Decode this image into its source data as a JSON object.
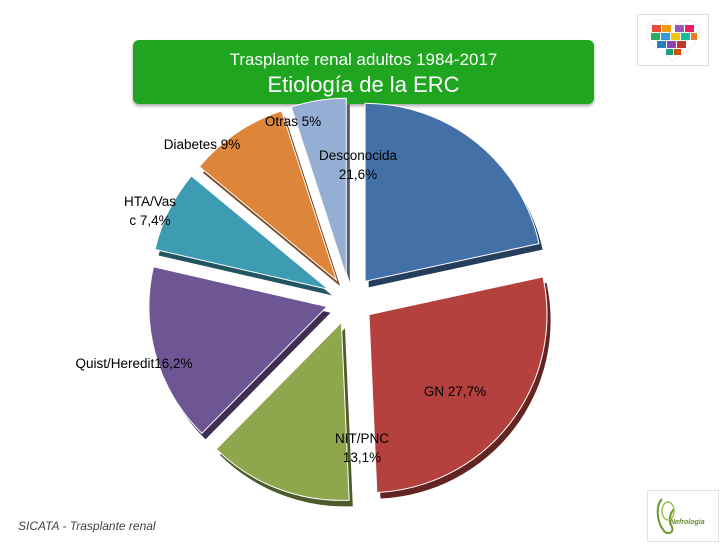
{
  "title": {
    "line1": "Trasplante renal adultos 1984-2017",
    "line2": "Etiología de la ERC"
  },
  "footer": "SICATA - Trasplante renal",
  "chart_data": {
    "type": "pie",
    "slices": [
      {
        "label": "Desconocida 21,6%",
        "value": 21.6,
        "color": "#4470a8"
      },
      {
        "label": "GN 27,7%",
        "value": 27.7,
        "color": "#b5413e"
      },
      {
        "label": "NIT/PNC 13,1%",
        "value": 13.1,
        "color": "#8ea64c"
      },
      {
        "label": "Quist/Heredit16,2%",
        "value": 16.2,
        "color": "#6e5594"
      },
      {
        "label": "HTA/Vasc 7,4%",
        "value": 7.4,
        "color": "#3d9bb2"
      },
      {
        "label": "Diabetes 9%",
        "value": 9,
        "color": "#dd8538"
      },
      {
        "label": "Otras 5%",
        "value": 5,
        "color": "#95aed3"
      }
    ],
    "text_labels": [
      {
        "lines": [
          "Otras 5%"
        ]
      },
      {
        "lines": [
          "Diabetes 9%"
        ]
      },
      {
        "lines": [
          "Desconocida",
          "21,6%"
        ]
      },
      {
        "lines": [
          "HTA/Vas",
          "c 7,4%"
        ]
      },
      {
        "lines": [
          "Quist/Heredit16,2%"
        ]
      },
      {
        "lines": [
          "GN 27,7%"
        ]
      },
      {
        "lines": [
          "NIT/PNC",
          "13,1%"
        ]
      }
    ],
    "legend": "none",
    "exploded": true
  },
  "logos": {
    "bottom_text": "Nefrologia"
  }
}
